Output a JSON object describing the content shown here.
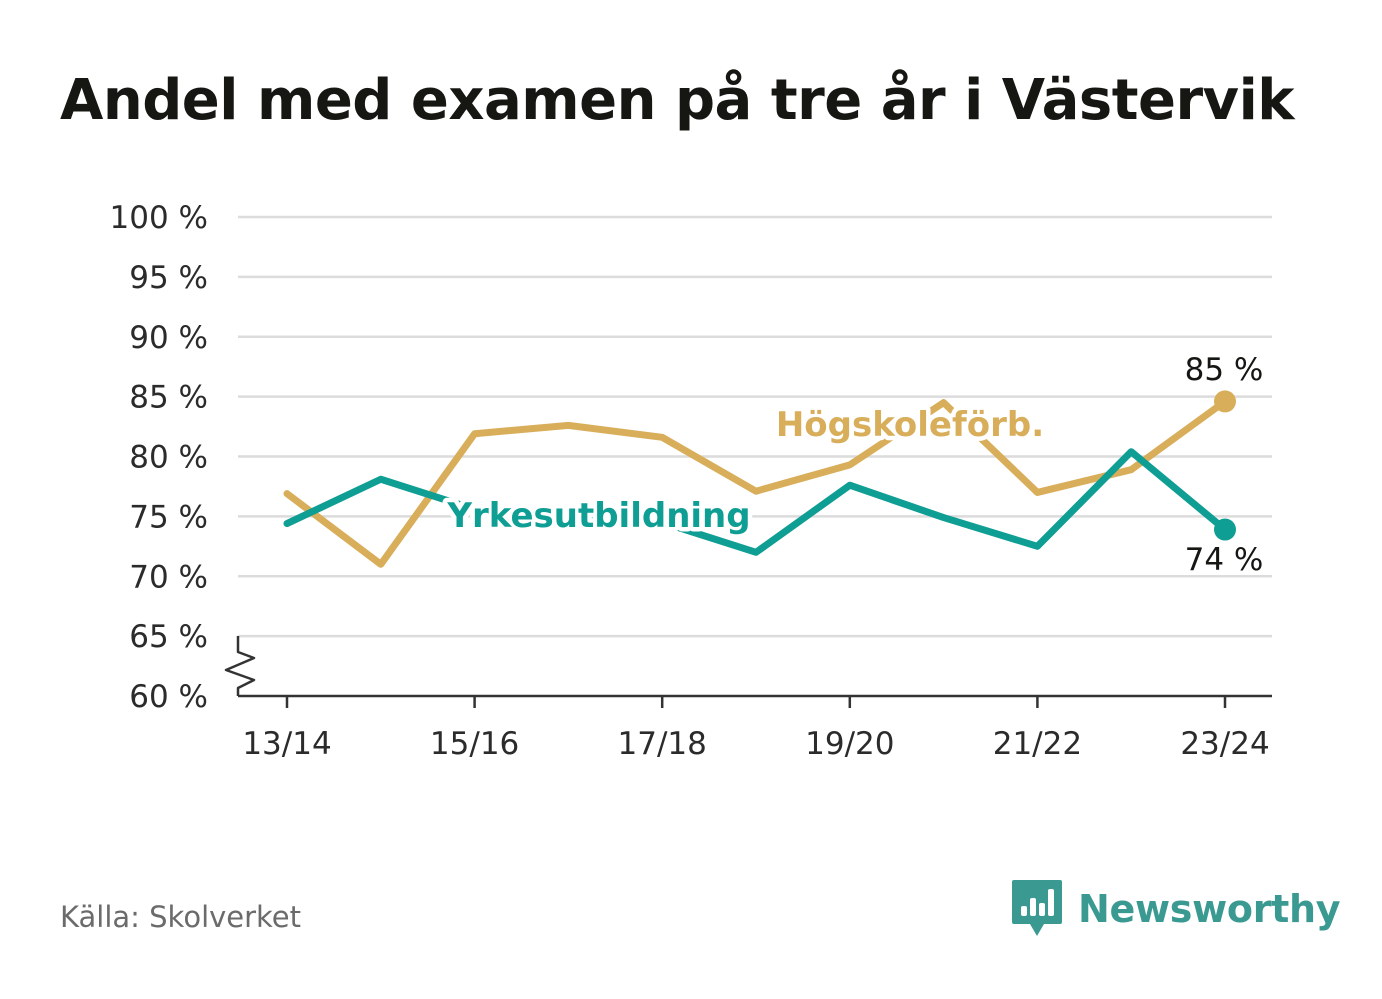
{
  "title": "Andel med examen på tre år i Västervik",
  "source": "Källa: Skolverket",
  "brand": {
    "name": "Newsworthy",
    "color": "#3a9a92",
    "icon": "bar-chart-icon"
  },
  "chart_data": {
    "type": "line",
    "title": "Andel med examen på tre år i Västervik",
    "x": [
      "13/14",
      "14/15",
      "15/16",
      "16/17",
      "17/18",
      "18/19",
      "19/20",
      "20/21",
      "21/22",
      "22/23",
      "23/24"
    ],
    "x_tick_labels": [
      "13/14",
      "15/16",
      "17/18",
      "19/20",
      "21/22",
      "23/24"
    ],
    "ylim": [
      60,
      100
    ],
    "y_ticks": [
      60,
      65,
      70,
      75,
      80,
      85,
      90,
      95,
      100
    ],
    "y_tick_labels": [
      "60 %",
      "65 %",
      "70 %",
      "75 %",
      "80 %",
      "85 %",
      "90 %",
      "95 %",
      "100 %"
    ],
    "axis_break": true,
    "grid": true,
    "series": [
      {
        "name": "Högskoleförb.",
        "color": "#d9ae5a",
        "values": [
          76.9,
          71.0,
          81.9,
          82.6,
          81.6,
          77.1,
          79.3,
          84.5,
          77.0,
          78.9,
          84.6
        ],
        "end_label": "85 %"
      },
      {
        "name": "Yrkesutbildning",
        "color": "#0f9e94",
        "values": [
          74.4,
          78.1,
          75.6,
          74.8,
          74.5,
          72.0,
          77.6,
          74.9,
          72.5,
          80.4,
          73.9
        ],
        "end_label": "74 %"
      }
    ]
  }
}
